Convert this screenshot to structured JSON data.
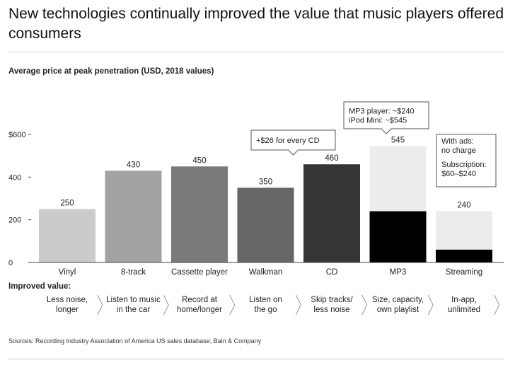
{
  "page": {
    "title": "New technologies continually improved the value that music players offered consumers",
    "footer": "Sources: Recording Industry Association of America US sales database; Bain & Company"
  },
  "chart_data": {
    "type": "bar",
    "subtitle": "Average price at peak penetration (USD, 2018 values)",
    "ylim": [
      0,
      600
    ],
    "yticks": [
      {
        "value": 0,
        "label": "0"
      },
      {
        "value": 200,
        "label": "200"
      },
      {
        "value": 400,
        "label": "400"
      },
      {
        "value": 600,
        "label": "$600"
      }
    ],
    "categories": [
      "Vinyl",
      "8-track",
      "Cassette player",
      "Walkman",
      "CD",
      "MP3",
      "Streaming"
    ],
    "bars": [
      {
        "category": "Vinyl",
        "total": 250,
        "label": "250",
        "color": "#cbcbcb"
      },
      {
        "category": "8-track",
        "total": 430,
        "label": "430",
        "color": "#a3a3a3"
      },
      {
        "category": "Cassette player",
        "total": 450,
        "label": "450",
        "color": "#7a7a7a"
      },
      {
        "category": "Walkman",
        "total": 350,
        "label": "350",
        "color": "#666666"
      },
      {
        "category": "CD",
        "total": 460,
        "label": "460",
        "color": "#353535"
      },
      {
        "category": "MP3",
        "total": 545,
        "label": "545",
        "color": "#ececec",
        "base": 240,
        "base_color": "#000000"
      },
      {
        "category": "Streaming",
        "total": 240,
        "label": "240",
        "color": "#ececec",
        "base": 60,
        "base_color": "#000000"
      }
    ],
    "callouts": [
      {
        "category": "CD",
        "lines": [
          "+$26 for every CD"
        ]
      },
      {
        "category": "MP3",
        "lines": [
          "MP3 player: ~$240",
          "iPod Mini: ~$545"
        ]
      },
      {
        "category": "Streaming",
        "lines": [
          "With ads:",
          "no charge",
          "Subscription:",
          "$60–$240"
        ]
      }
    ],
    "improved_value": {
      "heading": "Improved value:",
      "items": [
        [
          "Less noise,",
          "longer"
        ],
        [
          "Listen to music",
          "in the car"
        ],
        [
          "Record at",
          "home/longer"
        ],
        [
          "Listen on",
          "the go"
        ],
        [
          "Skip tracks/",
          "less noise"
        ],
        [
          "Size, capacity,",
          "own playlist"
        ],
        [
          "In-app,",
          "unlimited"
        ]
      ]
    }
  }
}
